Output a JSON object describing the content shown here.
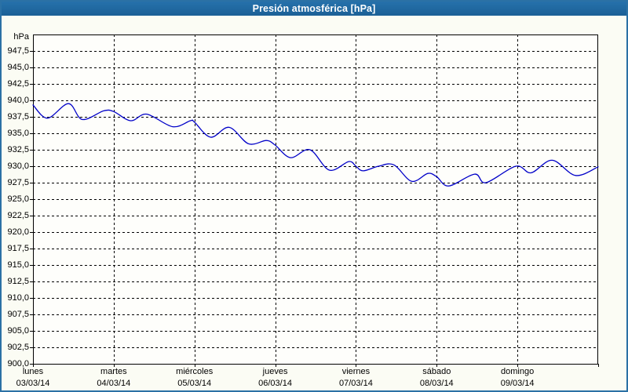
{
  "window": {
    "title": "Presión atmosférica [hPa]",
    "colors": {
      "titlebar_bg": "#1f669f",
      "titlebar_text": "#ffffff",
      "window_border": "#2b71a5",
      "background": "#fbfcf4",
      "plot_background": "#fefefb",
      "axis_and_grid": "#000000",
      "label_text": "#000000",
      "line": "#0000c8"
    }
  },
  "chart_data": {
    "type": "line",
    "title": "Presión atmosférica [hPa]",
    "ylabel": "hPa",
    "ylim": [
      900,
      950
    ],
    "ytick_step": 2.5,
    "ytick_labels": [
      "947,5",
      "945,0",
      "942,5",
      "940,0",
      "937,5",
      "935,0",
      "932,5",
      "930,0",
      "927,5",
      "925,0",
      "922,5",
      "920,0",
      "917,5",
      "915,0",
      "912,5",
      "910,0",
      "907,5",
      "905,0",
      "902,5",
      "900,0"
    ],
    "grid": "dashed",
    "legend_position": "none",
    "x_days": [
      {
        "name": "lunes",
        "date": "03/03/14"
      },
      {
        "name": "martes",
        "date": "04/03/14"
      },
      {
        "name": "miércoles",
        "date": "05/03/14"
      },
      {
        "name": "jueves",
        "date": "06/03/14"
      },
      {
        "name": "viernes",
        "date": "07/03/14"
      },
      {
        "name": "sábado",
        "date": "08/03/14"
      },
      {
        "name": "domingo",
        "date": "09/03/14"
      }
    ],
    "series": [
      {
        "name": "Presión atmosférica",
        "color": "#0000c8",
        "points_x_in_days_from_first_tick": true,
        "points": [
          [
            0.0,
            939.3
          ],
          [
            0.18,
            937.3
          ],
          [
            0.44,
            939.5
          ],
          [
            0.61,
            937.1
          ],
          [
            0.875,
            938.4
          ],
          [
            1.0,
            938.3
          ],
          [
            1.21,
            936.9
          ],
          [
            1.41,
            937.9
          ],
          [
            1.73,
            936.0
          ],
          [
            1.95,
            936.9
          ],
          [
            2.0,
            936.7
          ],
          [
            2.2,
            934.4
          ],
          [
            2.43,
            935.9
          ],
          [
            2.67,
            933.4
          ],
          [
            2.89,
            933.9
          ],
          [
            3.0,
            933.2
          ],
          [
            3.19,
            931.3
          ],
          [
            3.43,
            932.5
          ],
          [
            3.67,
            929.4
          ],
          [
            3.91,
            930.7
          ],
          [
            4.0,
            930.0
          ],
          [
            4.09,
            929.3
          ],
          [
            4.28,
            930.0
          ],
          [
            4.47,
            930.2
          ],
          [
            4.69,
            927.7
          ],
          [
            4.89,
            928.9
          ],
          [
            5.0,
            928.4
          ],
          [
            5.15,
            927.0
          ],
          [
            5.47,
            928.8
          ],
          [
            5.61,
            927.5
          ],
          [
            5.98,
            930.0
          ],
          [
            6.17,
            929.0
          ],
          [
            6.43,
            930.9
          ],
          [
            6.72,
            928.6
          ],
          [
            7.0,
            929.9
          ]
        ]
      }
    ]
  }
}
